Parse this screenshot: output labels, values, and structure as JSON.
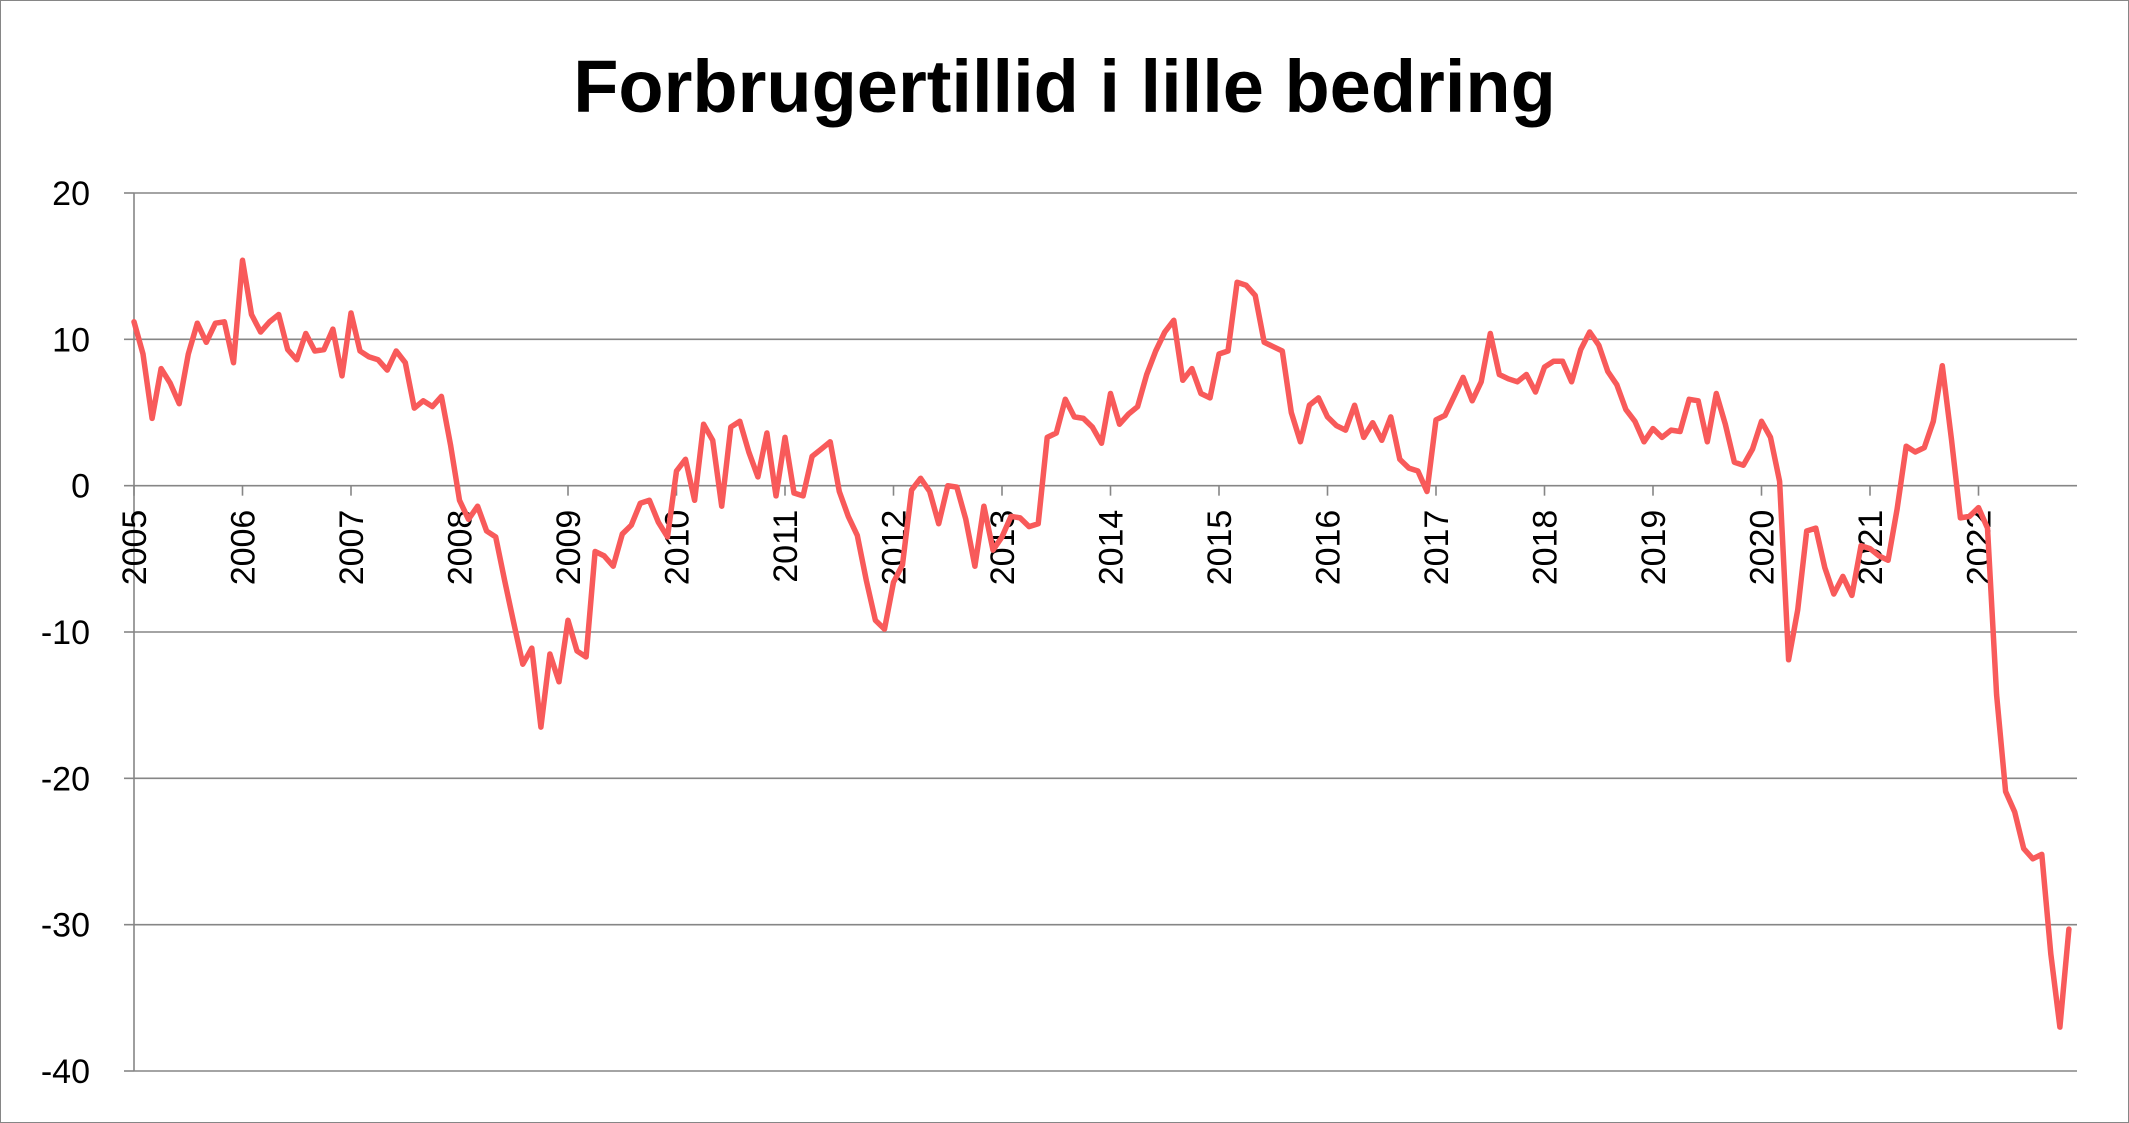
{
  "chart_data": {
    "type": "line",
    "title": "Forbrugertillid i lille bedring",
    "xlabel": "",
    "ylabel": "",
    "ylim": [
      -40,
      20
    ],
    "yticks": [
      20,
      10,
      0,
      -10,
      -20,
      -30,
      -40
    ],
    "xticks": [
      "2005",
      "2006",
      "2007",
      "2008",
      "2009",
      "2010",
      "2011",
      "2012",
      "2013",
      "2014",
      "2015",
      "2016",
      "2017",
      "2018",
      "2019",
      "2020",
      "2021",
      "2022"
    ],
    "x_start": "2005-01",
    "x_frequency": "monthly",
    "grid": "horizontal",
    "legend": "none",
    "series": [
      {
        "color": "#F85A5A",
        "values": [
          11.2,
          9.0,
          4.6,
          8.0,
          7.0,
          5.6,
          9.0,
          11.1,
          9.8,
          11.1,
          11.2,
          8.4,
          15.4,
          11.7,
          10.5,
          11.2,
          11.7,
          9.3,
          8.6,
          10.4,
          9.2,
          9.3,
          10.7,
          7.5,
          11.8,
          9.2,
          8.8,
          8.6,
          7.9,
          9.2,
          8.4,
          5.3,
          5.8,
          5.4,
          6.1,
          2.8,
          -1.0,
          -2.3,
          -1.4,
          -3.1,
          -3.5,
          -6.5,
          -9.4,
          -12.2,
          -11.1,
          -16.5,
          -11.5,
          -13.4,
          -9.2,
          -11.3,
          -11.7,
          -4.5,
          -4.8,
          -5.5,
          -3.3,
          -2.7,
          -1.2,
          -1.0,
          -2.5,
          -3.5,
          1.0,
          1.8,
          -1.0,
          4.2,
          3.1,
          -1.4,
          4.0,
          4.4,
          2.3,
          0.6,
          3.6,
          -0.7,
          3.3,
          -0.5,
          -0.7,
          2.0,
          2.5,
          3.0,
          -0.4,
          -2.1,
          -3.4,
          -6.5,
          -9.2,
          -9.8,
          -6.6,
          -5.4,
          -0.3,
          0.5,
          -0.4,
          -2.6,
          0.0,
          -0.1,
          -2.3,
          -5.5,
          -1.4,
          -4.4,
          -3.5,
          -2.1,
          -2.2,
          -2.8,
          -2.6,
          3.3,
          3.6,
          5.9,
          4.7,
          4.6,
          4.0,
          2.9,
          6.3,
          4.2,
          4.9,
          5.4,
          7.6,
          9.2,
          10.5,
          11.3,
          7.2,
          8.0,
          6.3,
          6.0,
          9.0,
          9.2,
          13.9,
          13.7,
          13.0,
          9.8,
          9.5,
          9.2,
          5.0,
          3.0,
          5.5,
          6.0,
          4.7,
          4.1,
          3.8,
          5.5,
          3.3,
          4.3,
          3.1,
          4.7,
          1.8,
          1.2,
          1.0,
          -0.4,
          4.5,
          4.8,
          6.1,
          7.4,
          5.8,
          7.1,
          10.4,
          7.6,
          7.3,
          7.1,
          7.6,
          6.4,
          8.1,
          8.5,
          8.5,
          7.1,
          9.3,
          10.5,
          9.6,
          7.8,
          6.9,
          5.2,
          4.4,
          3.0,
          3.9,
          3.3,
          3.8,
          3.7,
          5.9,
          5.8,
          3.0,
          6.3,
          4.2,
          1.6,
          1.4,
          2.5,
          4.4,
          3.3,
          0.3,
          -11.9,
          -8.5,
          -3.1,
          -2.9,
          -5.6,
          -7.4,
          -6.2,
          -7.5,
          -4.1,
          -4.3,
          -4.8,
          -5.1,
          -1.6,
          2.7,
          2.3,
          2.6,
          4.4,
          8.2,
          3.2,
          -2.2,
          -2.1,
          -1.5,
          -2.9,
          -14.3,
          -20.9,
          -22.3,
          -24.8,
          -25.5,
          -25.2,
          -32.0,
          -37.0,
          -30.3
        ]
      }
    ]
  }
}
